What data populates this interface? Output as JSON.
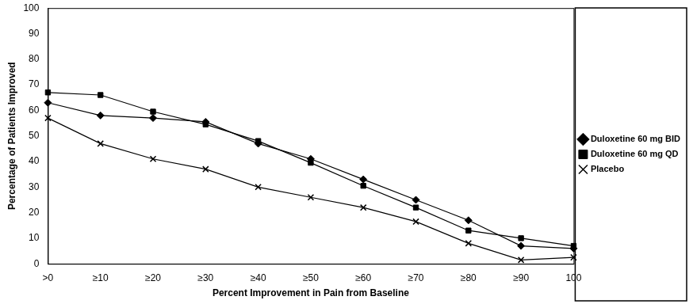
{
  "chart_data": {
    "type": "line",
    "x_label": "Percent Improvement in Pain from Baseline",
    "y_label": "Percentage of Patients Improved",
    "categories": [
      ">0",
      "≥10",
      "≥20",
      "≥30",
      "≥40",
      "≥50",
      "≥60",
      "≥70",
      "≥80",
      "≥90",
      "100"
    ],
    "series": [
      {
        "name": "Duloxetine 60 mg BID",
        "color": "#000000",
        "marker": "diamond",
        "line_style": "solid",
        "values": [
          63,
          58,
          57,
          55.5,
          47,
          41,
          33,
          25,
          17,
          7,
          6
        ]
      },
      {
        "name": "Duloxetine 60 mg QD",
        "color": "#000000",
        "marker": "square",
        "line_style": "solid",
        "values": [
          67,
          66,
          59.5,
          54.5,
          48,
          39.5,
          30.5,
          22,
          13,
          10,
          7
        ]
      },
      {
        "name": "Placebo",
        "color": "#000000",
        "marker": "cross",
        "line_style": "solid",
        "values": [
          57,
          47,
          41,
          37,
          30,
          26,
          22,
          16.5,
          8,
          1.5,
          2.5
        ]
      }
    ],
    "ylim": [
      0,
      100
    ],
    "yticks": [
      0,
      10,
      20,
      30,
      40,
      50,
      60,
      70,
      80,
      90,
      100
    ],
    "grid": false,
    "legend": "right"
  }
}
